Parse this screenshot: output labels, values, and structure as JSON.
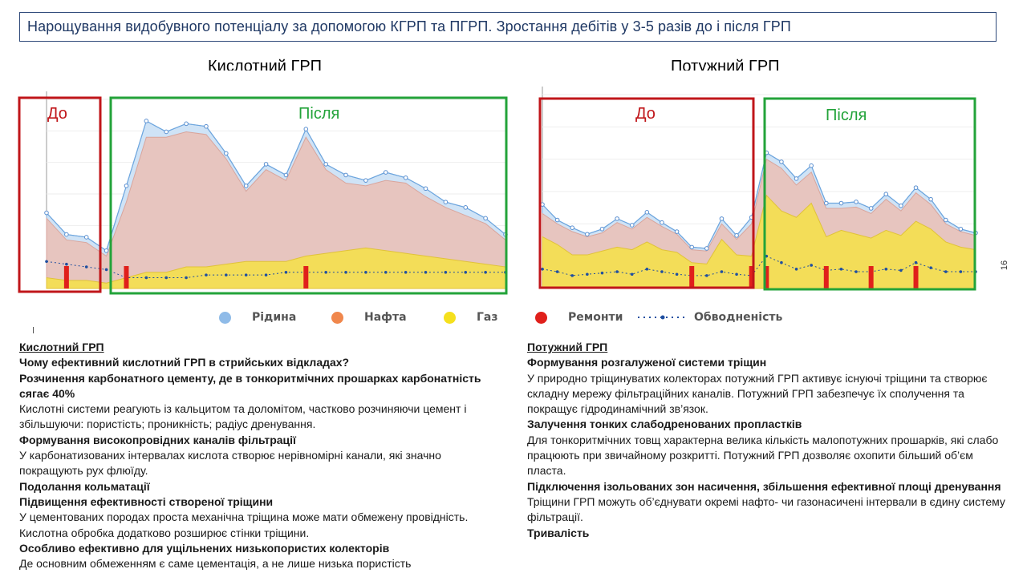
{
  "title": "Нарощування видобувного потенціалу за допомогою КГРП та  ПГРП. Зростання дебітів у 3-5 разів до і після ГРП",
  "page_number": "16",
  "colors": {
    "liquid": "#8fbbe8",
    "oil": "#e7c5bf",
    "gas": "#f3dd58",
    "repairs": "#e0201b",
    "watercut": "#1f4fa0",
    "before_box": "#c0161a",
    "after_box": "#23a33a",
    "title_border": "#2f4a7a"
  },
  "legend": [
    {
      "label": "Рідина",
      "icon": "circle-blue-icon",
      "color": "#8fbbe8"
    },
    {
      "label": "Нафта",
      "icon": "circle-orange-icon",
      "color": "#f0874c"
    },
    {
      "label": "Газ",
      "icon": "circle-yellow-icon",
      "color": "#f5e01d"
    },
    {
      "label": "Ремонти",
      "icon": "circle-red-icon",
      "color": "#e0201b"
    },
    {
      "label": "Обводненість",
      "icon": "dotted-line-icon",
      "color": "#1f4fa0"
    }
  ],
  "chart_data": [
    {
      "type": "area",
      "title": "Кислотний ГРП",
      "before_label": "До",
      "after_label": "Після",
      "ylim": [
        0,
        35
      ],
      "series": [
        {
          "name": "Рідина",
          "values": [
            14,
            10,
            9.5,
            7,
            19,
            31,
            29,
            30.5,
            30,
            25,
            19,
            23,
            21,
            29.5,
            23,
            21,
            20,
            21.5,
            20.5,
            18.5,
            16,
            15,
            13,
            10
          ]
        },
        {
          "name": "Нафта",
          "values": [
            13,
            9,
            8.5,
            6,
            16,
            28,
            28,
            29,
            28.5,
            24,
            18,
            22,
            20,
            28,
            22,
            19.5,
            19,
            20,
            19.5,
            17,
            15,
            13.5,
            12,
            9
          ]
        },
        {
          "name": "Газ",
          "values": [
            2,
            1.5,
            1.5,
            1,
            2,
            3,
            3,
            4,
            4,
            4.5,
            5,
            5,
            5,
            6,
            6.5,
            7,
            7.5,
            7,
            6.5,
            6,
            5.5,
            5,
            4.5,
            4
          ]
        },
        {
          "name": "Обводненість",
          "values": [
            5,
            4.5,
            4,
            3.5,
            2,
            2,
            2,
            2,
            2.5,
            2.5,
            2.5,
            2.5,
            3,
            3,
            3,
            3,
            3,
            3,
            3,
            3,
            3,
            3,
            3,
            3
          ]
        }
      ],
      "repairs_index": [
        1,
        4,
        13
      ],
      "annotation": "Кислотний ГРП"
    },
    {
      "type": "area",
      "title": "Потужний ГРП",
      "before_label": "До",
      "after_label": "Після",
      "ylim": [
        0,
        15
      ],
      "series": [
        {
          "name": "Рідина",
          "values": [
            6.5,
            5.3,
            4.7,
            4.2,
            4.6,
            5.4,
            4.9,
            5.9,
            5.1,
            4.4,
            3.2,
            3.1,
            5.4,
            4.1,
            5.5,
            10.5,
            9.8,
            8.5,
            9.5,
            6.6,
            6.6,
            6.7,
            6.2,
            7.3,
            6.4,
            7.8,
            6.9,
            5.3,
            4.6,
            4.3
          ]
        },
        {
          "name": "Нафта",
          "values": [
            5.8,
            5.0,
            4.4,
            4.0,
            4.3,
            5.1,
            4.6,
            5.5,
            4.8,
            4.2,
            3.0,
            2.9,
            5.0,
            3.8,
            5.0,
            10,
            9.3,
            8.0,
            9.0,
            6.2,
            6.2,
            6.3,
            5.8,
            6.9,
            6.0,
            7.4,
            6.5,
            5.0,
            4.4,
            4.1
          ]
        },
        {
          "name": "Газ",
          "values": [
            4,
            3.4,
            2.6,
            2.6,
            2.9,
            3.2,
            3.0,
            3.6,
            3.0,
            2.8,
            2.0,
            1.9,
            3.8,
            2.6,
            2.5,
            7.2,
            6.0,
            5.5,
            6.6,
            4.0,
            4.5,
            4.2,
            3.9,
            4.5,
            4.1,
            5.2,
            4.6,
            3.6,
            3.2,
            3.0
          ]
        },
        {
          "name": "Обводненість",
          "values": [
            1.5,
            1.3,
            1.0,
            1.1,
            1.2,
            1.3,
            1.1,
            1.5,
            1.3,
            1.1,
            1.0,
            1.0,
            1.3,
            1.1,
            1.0,
            2.5,
            2.0,
            1.5,
            1.8,
            1.4,
            1.5,
            1.3,
            1.3,
            1.5,
            1.4,
            2.0,
            1.6,
            1.3,
            1.3,
            1.3
          ]
        }
      ],
      "repairs_index": [
        10,
        14,
        15,
        19,
        22,
        25
      ]
    }
  ],
  "left_text": [
    {
      "text": "Кислотний ГРП",
      "style": "u"
    },
    {
      "text": "Чому ефективний кислотний ГРП в стрийських відкладах?",
      "style": "h"
    },
    {
      "text": "Розчинення карбонатного цементу, де в тонкоритмічних прошарках карбонатність сягає 40%",
      "style": "h"
    },
    {
      "text": "Кислотні системи реагують із кальцитом та доломітом, частково розчиняючи цемент і збільшуючи: пористість; проникність; радіус дренування.",
      "style": "n"
    },
    {
      "text": "Формування високопровідних каналів фільтрації",
      "style": "h"
    },
    {
      "text": "У карбонатизованих інтервалах кислота створює нерівномірні канали, які значно покращують рух флюїду.",
      "style": "n"
    },
    {
      "text": "Подолання кольматації",
      "style": "h"
    },
    {
      "text": "Підвищення ефективності створеної тріщини",
      "style": "h"
    },
    {
      "text": "У цементованих породах проста механічна тріщина може мати обмежену провідність. Кислотна обробка додатково розширює стінки тріщини.",
      "style": "n"
    },
    {
      "text": "Особливо ефективно для ущільнених низькопористих колекторів",
      "style": "h"
    },
    {
      "text": "Де основним обмеженням є саме цементація, а не лише низька пористість",
      "style": "n"
    }
  ],
  "right_text": [
    {
      "text": "Потужний ГРП",
      "style": "u"
    },
    {
      "text": "Формування розгалуженої системи тріщин",
      "style": "h"
    },
    {
      "text": "У природно тріщинуватих колекторах потужний ГРП активує існуючі тріщини та створює складну мережу фільтраційних каналів. Потужний ГРП забезпечує їх сполучення та покращує гідродинамічний зв’язок.",
      "style": "n"
    },
    {
      "text": "Залучення тонких слабодренованих пропластків",
      "style": "h"
    },
    {
      "text": "Для тонкоритмічних товщ характерна велика кількість малопотужних прошарків, які слабо працюють при звичайному розкритті. Потужний ГРП дозволяє охопити більший об’єм пласта.",
      "style": "n"
    },
    {
      "text": "Підключення ізольованих зон насичення, збільшення ефективної площі дренування",
      "style": "h"
    },
    {
      "text": "Тріщини ГРП можуть об’єднувати окремі нафто- чи газонасичені інтервали в єдину систему фільтрації.",
      "style": "n"
    },
    {
      "text": "Тривалість",
      "style": "h"
    }
  ]
}
